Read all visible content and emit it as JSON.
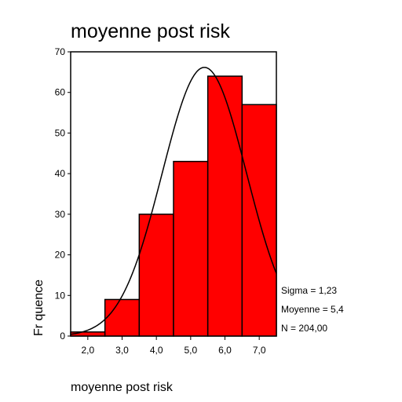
{
  "chart_data": {
    "type": "bar",
    "title": "moyenne post risk",
    "xlabel": "moyenne post risk",
    "ylabel": "Fr quence",
    "bin_edges": [
      1.5,
      2.5,
      3.5,
      4.5,
      5.5,
      6.5,
      7.5
    ],
    "categories": [
      "2,0",
      "3,0",
      "4,0",
      "5,0",
      "6,0",
      "7,0"
    ],
    "values": [
      1,
      9,
      30,
      43,
      64,
      57
    ],
    "ylim": [
      0,
      70
    ],
    "yticks": [
      "0",
      "10",
      "20",
      "30",
      "40",
      "50",
      "60",
      "70"
    ],
    "bar_color": "#ff0000",
    "normal_curve": {
      "mean": 5.4,
      "sigma": 1.23,
      "n": 204,
      "bin_width": 1
    },
    "stats": [
      "Sigma = 1,23",
      "Moyenne = 5,4",
      "N = 204,00"
    ],
    "grid": false,
    "legend": "none"
  }
}
